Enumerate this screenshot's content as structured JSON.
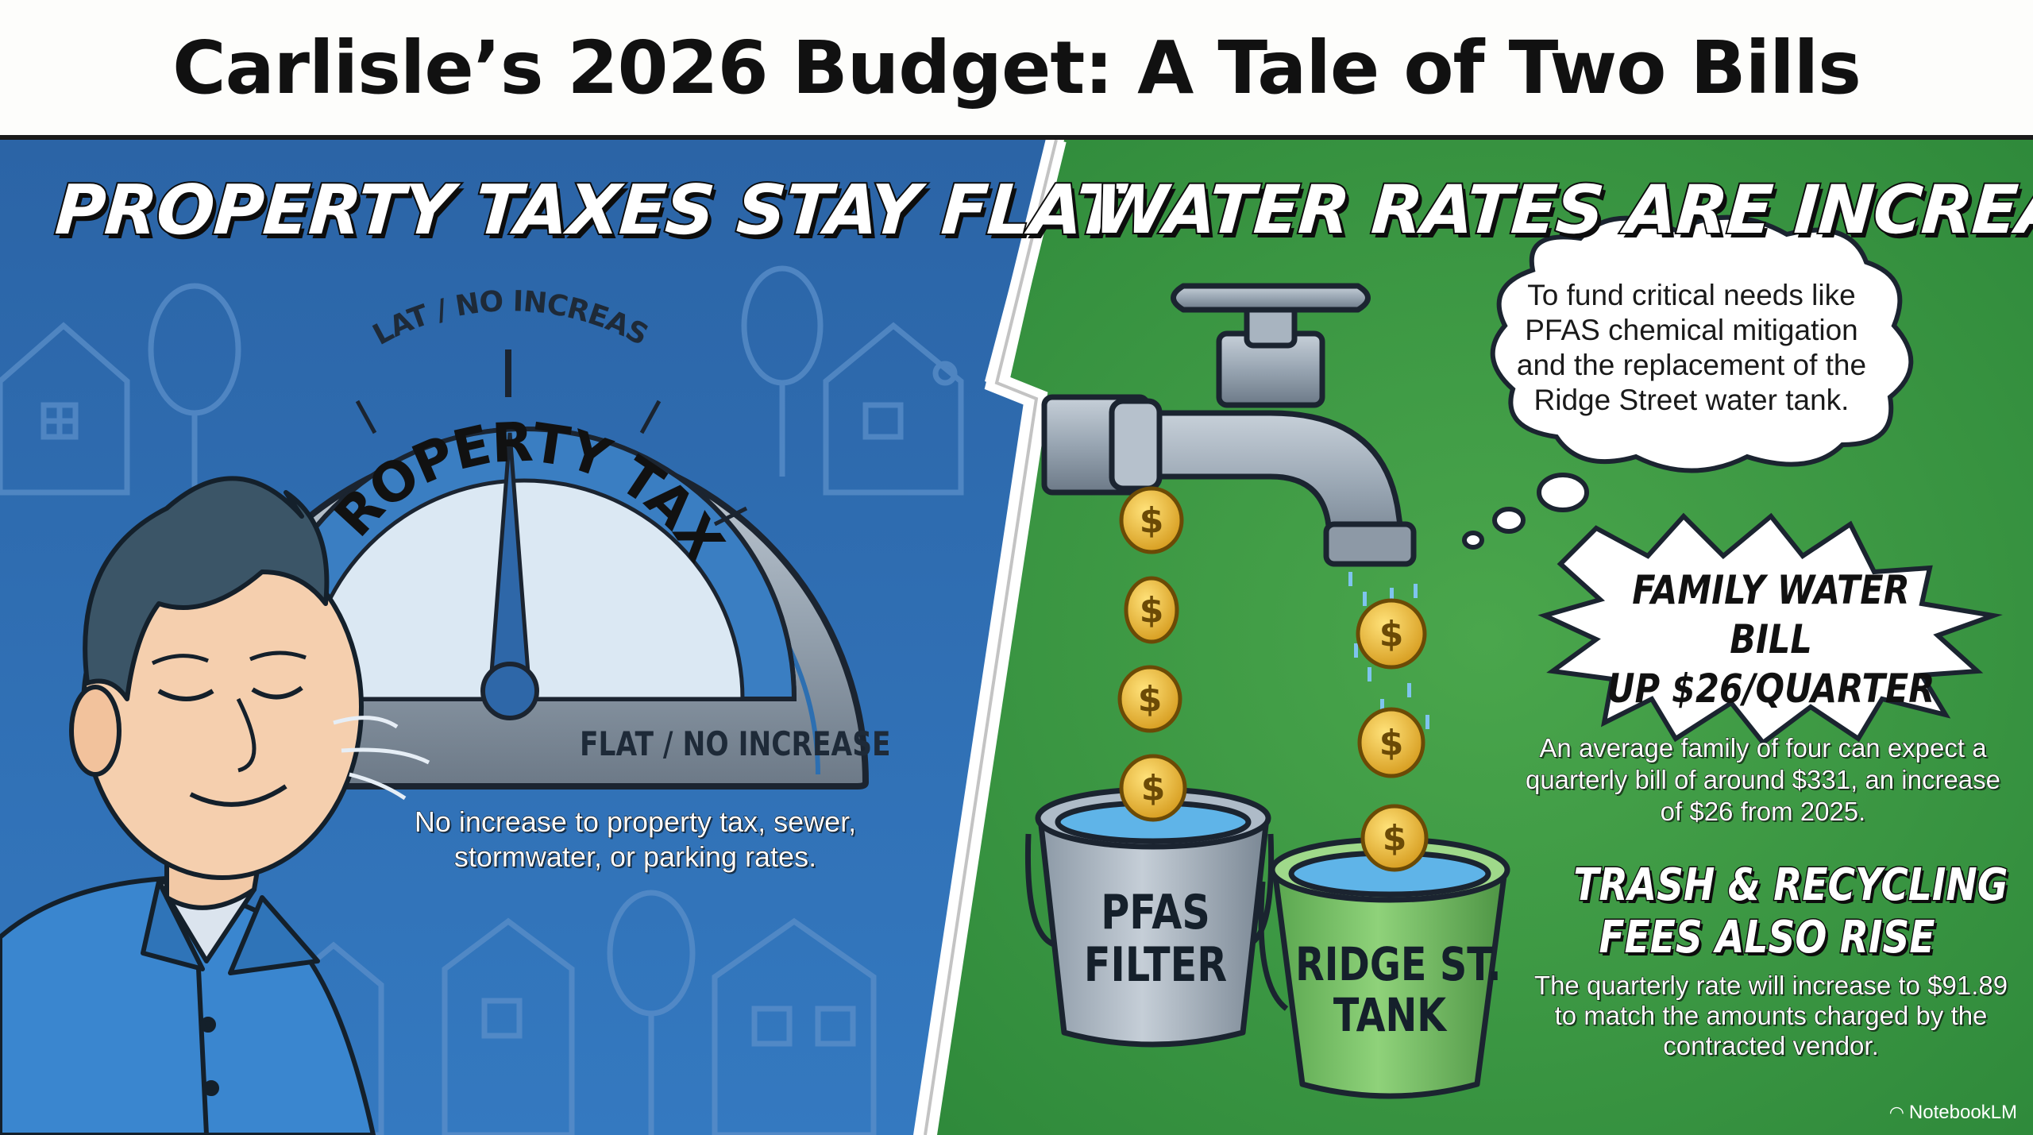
{
  "title": "Carlisle’s 2026 Budget: A Tale of Two Bills",
  "left_panel": {
    "heading": "PROPERTY TAXES STAY FLAT",
    "gauge": {
      "top_label": "FLAT / NO INCREASE",
      "center_label": "PROPERTY TAX",
      "bottom_label": "FLAT / NO INCREASE"
    },
    "caption": "No increase to property tax, sewer, stormwater, or parking rates."
  },
  "right_panel": {
    "heading": "WATER RATES ARE INCREASING",
    "thought_bubble": "To fund critical needs like PFAS chemical mitigation and the replacement of the Ridge Street water tank.",
    "burst": {
      "line1": "FAMILY WATER BILL",
      "line2": "UP $26/QUARTER"
    },
    "family_caption": "An average family of four can expect a quarterly bill of around $331, an increase of $26 from 2025.",
    "trash_heading": {
      "line1": "TRASH & RECYCLING",
      "line2": "FEES ALSO RISE"
    },
    "trash_caption": "The quarterly rate will increase to $91.89 to match the amounts charged by the contracted vendor.",
    "buckets": {
      "pfas": {
        "line1": "PFAS",
        "line2": "FILTER"
      },
      "tank": {
        "line1": "RIDGE ST.",
        "line2": "TANK"
      }
    },
    "coin_symbol": "$"
  },
  "branding": "NotebookLM",
  "colors": {
    "left_bg": "#2f6fb0",
    "right_bg": "#3f9a45",
    "title_bg": "#fdfdfb"
  }
}
